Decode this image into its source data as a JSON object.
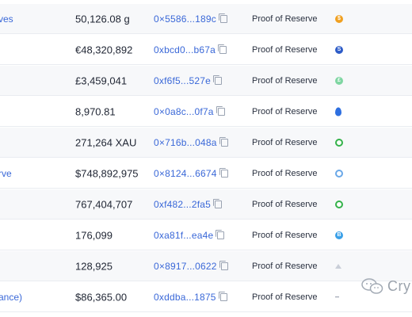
{
  "rows": [
    {
      "name": "ves",
      "amount": "50,126.08 g",
      "address": "0×5586...189c",
      "type": "Proof of Reserve",
      "badge_color": "#f0a020",
      "badge_glyph": "$",
      "badge_style": "solid"
    },
    {
      "name": "",
      "amount": "€48,320,892",
      "address": "0xbcd0...b67a",
      "type": "Proof of Reserve",
      "badge_color": "#2e5cc8",
      "badge_glyph": "S",
      "badge_style": "solid"
    },
    {
      "name": "",
      "amount": "£3,459,041",
      "address": "0xf6f5...527e",
      "type": "Proof of Reserve",
      "badge_color": "#7fd6a2",
      "badge_glyph": "£",
      "badge_style": "solid"
    },
    {
      "name": "",
      "amount": "8,970.81",
      "address": "0×0a8c...0f7a",
      "type": "Proof of Reserve",
      "badge_color": "#2e6fe0",
      "badge_glyph": "",
      "badge_style": "flame"
    },
    {
      "name": "",
      "amount": "271,264 XAU",
      "address": "0×716b...048a",
      "type": "Proof of Reserve",
      "badge_color": "#34b24a",
      "badge_glyph": "",
      "badge_style": "ring"
    },
    {
      "name": "rve",
      "amount": "$748,892,975",
      "address": "0×8124...6674",
      "type": "Proof of Reserve",
      "badge_color": "#6aa8e8",
      "badge_glyph": "",
      "badge_style": "ring"
    },
    {
      "name": "",
      "amount": "767,404,707",
      "address": "0xf482...2fa5",
      "type": "Proof of Reserve",
      "badge_color": "#34b24a",
      "badge_glyph": "",
      "badge_style": "ring"
    },
    {
      "name": "",
      "amount": "176,099",
      "address": "0xa81f...ea4e",
      "type": "Proof of Reserve",
      "badge_color": "#3aa0e8",
      "badge_glyph": "B",
      "badge_style": "solid"
    },
    {
      "name": "",
      "amount": "128,925",
      "address": "0×8917...0622",
      "type": "Proof of Reserve",
      "badge_color": "#c9ced8",
      "badge_glyph": "",
      "badge_style": "pyramid"
    },
    {
      "name": "ance)",
      "amount": "$86,365.00",
      "address": "0xddba...1875",
      "type": "Proof of Reserve",
      "badge_color": "#8a93a3",
      "badge_glyph": "",
      "badge_style": "dash"
    }
  ],
  "watermark": {
    "text": "Cry",
    "icon": "wechat-icon"
  }
}
